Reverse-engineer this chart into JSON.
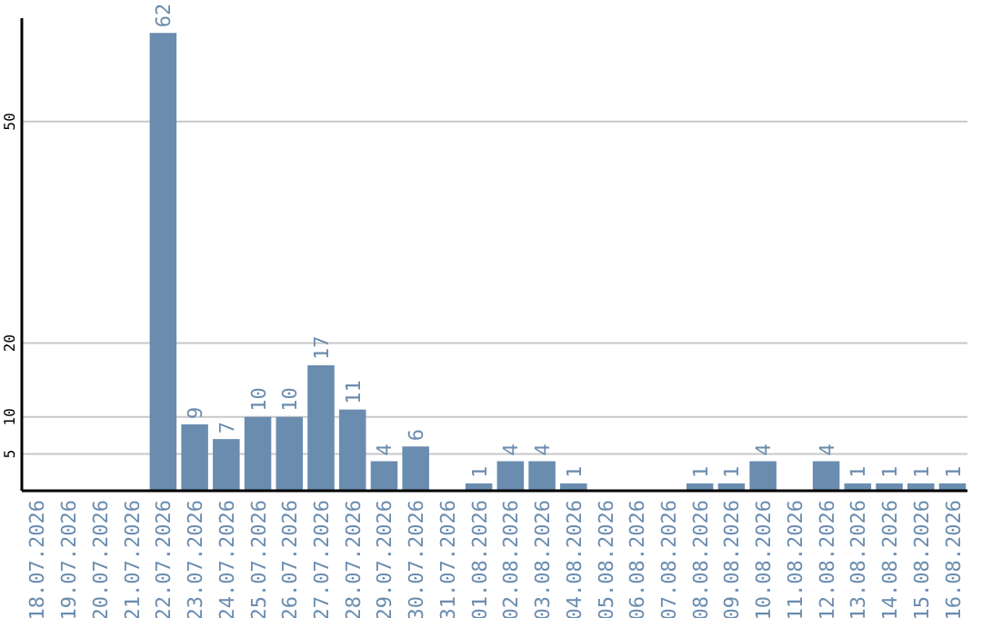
{
  "chart_data": {
    "type": "bar",
    "categories": [
      "18.07.2026",
      "19.07.2026",
      "20.07.2026",
      "21.07.2026",
      "22.07.2026",
      "23.07.2026",
      "24.07.2026",
      "25.07.2026",
      "26.07.2026",
      "27.07.2026",
      "28.07.2026",
      "29.07.2026",
      "30.07.2026",
      "31.07.2026",
      "01.08.2026",
      "02.08.2026",
      "03.08.2026",
      "04.08.2026",
      "05.08.2026",
      "06.08.2026",
      "07.08.2026",
      "08.08.2026",
      "09.08.2026",
      "10.08.2026",
      "11.08.2026",
      "12.08.2026",
      "13.08.2026",
      "14.08.2026",
      "15.08.2026",
      "16.08.2026"
    ],
    "values": [
      null,
      null,
      null,
      null,
      62,
      9,
      7,
      10,
      10,
      17,
      11,
      4,
      6,
      null,
      1,
      4,
      4,
      1,
      null,
      null,
      null,
      1,
      1,
      4,
      null,
      4,
      1,
      1,
      1,
      1
    ],
    "color": "#6a8caf",
    "ylim": [
      0,
      64
    ],
    "yticks": [
      5,
      10,
      20,
      50
    ],
    "grid": "y",
    "data_labels": true
  }
}
